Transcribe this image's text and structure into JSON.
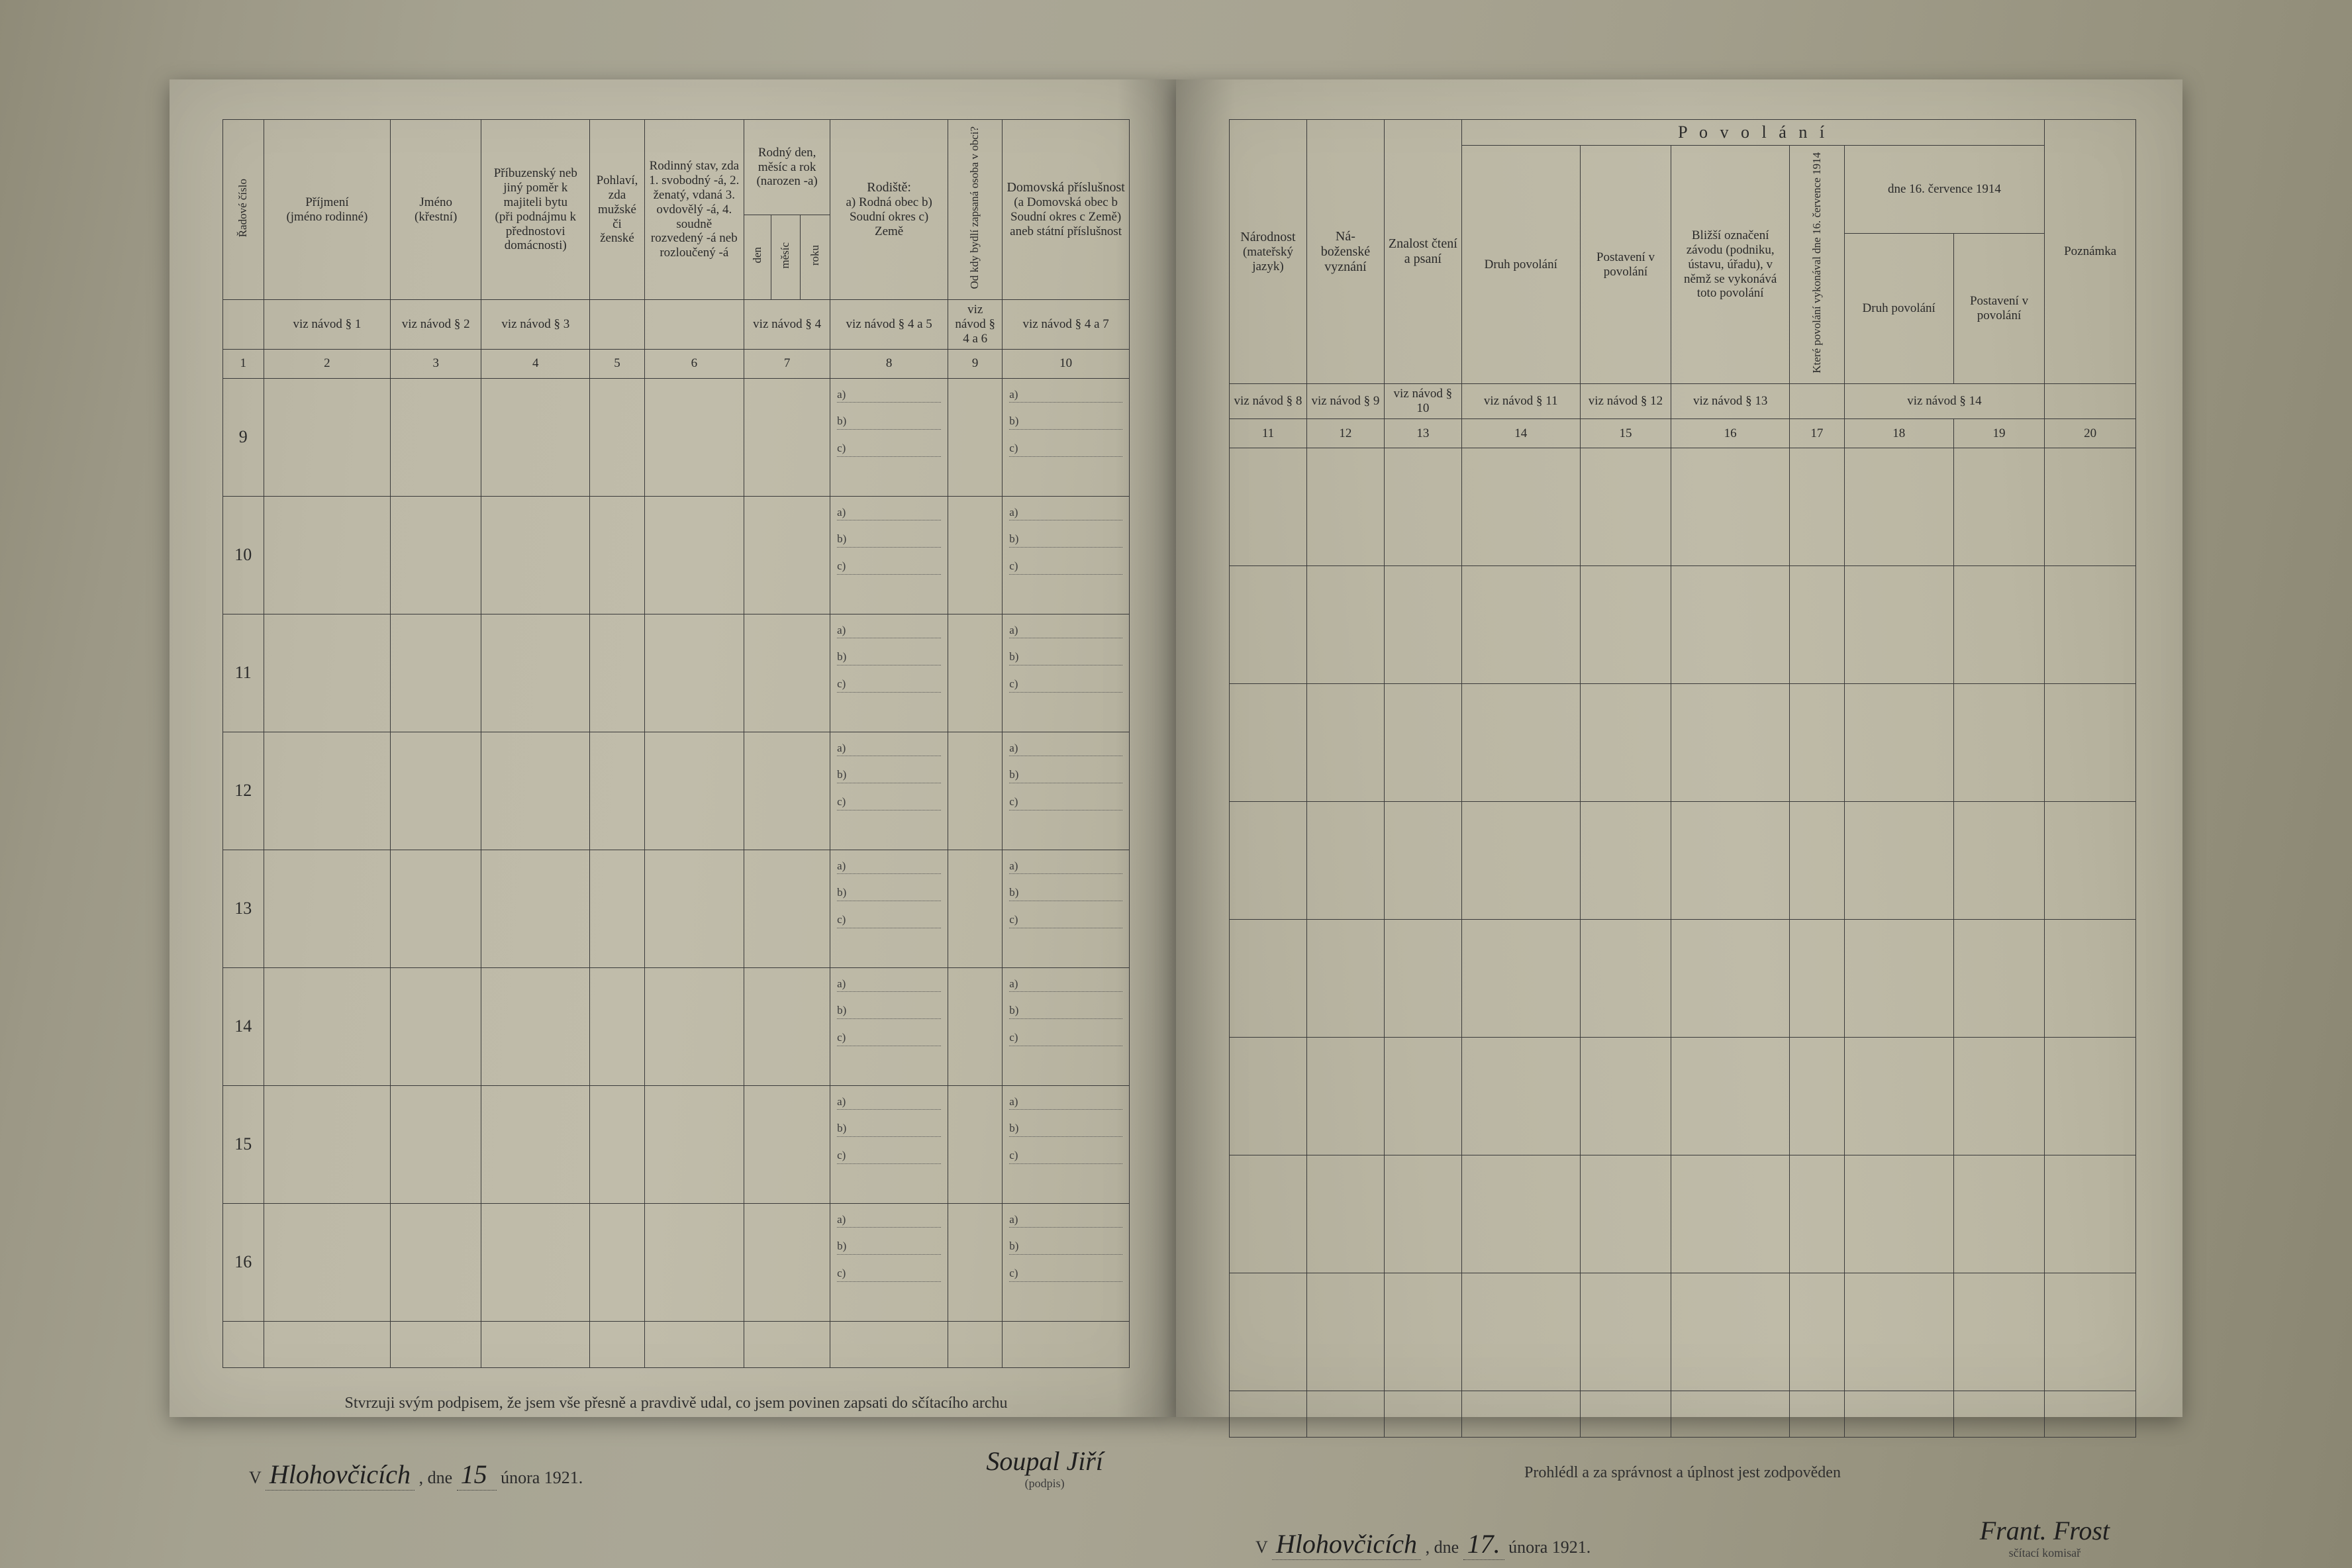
{
  "colors": {
    "ink": "#2a2a2a",
    "rule": "#3a3a3a",
    "paper_left": "#bdb9a7",
    "paper_right": "#bab6a3",
    "desk": "#97937f"
  },
  "typography": {
    "body_family": "Times New Roman / serif",
    "header_fontsize_pt": 10,
    "small_fontsize_pt": 8,
    "handwriting_family": "Brush Script MT / cursive"
  },
  "left_page": {
    "headers": {
      "col1": "Řadové číslo",
      "col2": {
        "main": "Příjmení",
        "sub": "(jméno rodinné)"
      },
      "col3": {
        "main": "Jméno",
        "sub": "(křestní)"
      },
      "col4": {
        "main": "Příbuzenský neb jiný poměr k majiteli bytu",
        "sub": "(při podnájmu k přednostovi domácnosti)"
      },
      "col5": {
        "main": "Pohlaví, zda",
        "sub": "mužské či ženské"
      },
      "col6": {
        "main": "Rodinný stav, zda",
        "sub": "1. svobodný -á, 2. ženatý, vdaná 3. ovdovělý -á, 4. soudně rozvedený -á neb rozloučený -á"
      },
      "col7": {
        "main": "Rodný den, měsíc a rok",
        "sub": "(narozen -a)",
        "subcols": [
          "den",
          "měsíc",
          "roku"
        ]
      },
      "col8": {
        "main": "Rodiště:",
        "sub": "a) Rodná obec b) Soudní okres c) Země"
      },
      "col9": "Od kdy bydlí zapsaná osoba v obci?",
      "col10": {
        "main": "Domovská příslušnost",
        "sub": "(a Domovská obec b Soudní okres c Země)",
        "sub2": "aneb státní příslušnost"
      }
    },
    "hint_row": {
      "c2": "viz návod § 1",
      "c3": "viz návod § 2",
      "c4": "viz návod § 3",
      "c7": "viz návod § 4",
      "c8": "viz návod § 4 a 5",
      "c9": "viz návod § 4 a 6",
      "c10": "viz návod § 4 a 7"
    },
    "colnums": [
      "1",
      "2",
      "3",
      "4",
      "5",
      "6",
      "7",
      "8",
      "9",
      "10"
    ],
    "row_numbers": [
      "9",
      "10",
      "11",
      "12",
      "13",
      "14",
      "15",
      "16"
    ],
    "abc_prefixes": [
      "a)",
      "b)",
      "c)"
    ],
    "footer_affirm": "Stvrzuji svým podpisem, že jsem vše přesně a pravdivě udal, co jsem povinen zapsati do sčítacího archu",
    "place_prefix": "V",
    "place_hand": "Hlohovčicích",
    "date_prefix": ", dne",
    "date_day_hand": "15",
    "date_rest": "února 1921.",
    "signature_hand": "Soupal Jiří",
    "signature_label": "(podpis)"
  },
  "right_page": {
    "group_title": "P o v o l á n í",
    "headers": {
      "col11": {
        "main": "Národnost",
        "sub": "(mateřský jazyk)"
      },
      "col12": {
        "main": "Ná-boženské vyznání"
      },
      "col13": {
        "main": "Znalost čtení a psaní"
      },
      "col14": "Druh povolání",
      "col15": "Postavení v povolání",
      "col16": "Bližší označení závodu (podniku, ústavu, úřadu), v němž se vykonává toto povolání",
      "col17_vert": "Které povolání vykonával dne 16. července 1914",
      "col17_date": "dne 16. července 1914",
      "col18": "Druh povolání",
      "col19": "Postavení v povolání",
      "col20": "Poznámka"
    },
    "hint_row": {
      "c11": "viz návod § 8",
      "c12": "viz návod § 9",
      "c13": "viz návod § 10",
      "c14": "viz návod § 11",
      "c15": "viz návod § 12",
      "c16": "viz návod § 13",
      "c18_19": "viz návod § 14"
    },
    "colnums": [
      "11",
      "12",
      "13",
      "14",
      "15",
      "16",
      "17",
      "18",
      "19",
      "20"
    ],
    "row_count": 8,
    "footer_affirm": "Prohlédl a za správnost a úplnost jest zodpověden",
    "place_prefix": "V",
    "place_hand": "Hlohovčicích",
    "date_prefix": ", dne",
    "date_day_hand": "17.",
    "date_rest": "února 1921.",
    "signature_hand": "Frant. Frost",
    "signature_label": "sčítací komisař"
  }
}
